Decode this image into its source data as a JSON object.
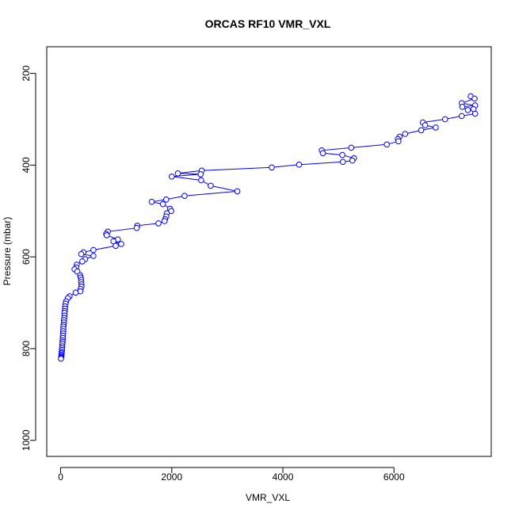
{
  "chart_data": {
    "type": "scatter",
    "title": "ORCAS RF10 VMR_VXL",
    "xlabel": "VMR_VXL",
    "ylabel": "Pressure (mbar)",
    "xlim": [
      -250,
      7750
    ],
    "ylim": [
      1035,
      142
    ],
    "y_reversed": true,
    "x_ticks": [
      0,
      2000,
      4000,
      6000
    ],
    "x_tick_labels": [
      "0",
      "2000",
      "4000",
      "6000"
    ],
    "y_ticks": [
      200,
      400,
      600,
      800,
      1000
    ],
    "y_tick_labels": [
      "200",
      "400",
      "600",
      "800",
      "1000"
    ],
    "grid": false,
    "legend": "none",
    "marker": "open-circle",
    "connect_points": true,
    "color": "#0000ff",
    "series": [
      {
        "points": [
          [
            7380,
            250
          ],
          [
            7450,
            255
          ],
          [
            7220,
            265
          ],
          [
            7460,
            270
          ],
          [
            7230,
            273
          ],
          [
            7330,
            280
          ],
          [
            7430,
            278
          ],
          [
            7460,
            288
          ],
          [
            7220,
            293
          ],
          [
            6920,
            300
          ],
          [
            6520,
            307
          ],
          [
            6560,
            313
          ],
          [
            6750,
            318
          ],
          [
            6490,
            324
          ],
          [
            6200,
            332
          ],
          [
            6100,
            338
          ],
          [
            6070,
            343
          ],
          [
            6080,
            348
          ],
          [
            5870,
            355
          ],
          [
            5230,
            362
          ],
          [
            4700,
            368
          ],
          [
            4720,
            374
          ],
          [
            5070,
            378
          ],
          [
            5280,
            385
          ],
          [
            5250,
            390
          ],
          [
            5080,
            393
          ],
          [
            4290,
            399
          ],
          [
            3800,
            405
          ],
          [
            2540,
            412
          ],
          [
            2110,
            418
          ],
          [
            2520,
            420
          ],
          [
            2000,
            425
          ],
          [
            2530,
            433
          ],
          [
            2700,
            445
          ],
          [
            3180,
            457
          ],
          [
            2230,
            467
          ],
          [
            1900,
            475
          ],
          [
            1640,
            480
          ],
          [
            1840,
            485
          ],
          [
            1970,
            495
          ],
          [
            1990,
            500
          ],
          [
            1910,
            505
          ],
          [
            1900,
            512
          ],
          [
            1880,
            518
          ],
          [
            1870,
            522
          ],
          [
            1760,
            527
          ],
          [
            1380,
            532
          ],
          [
            1370,
            537
          ],
          [
            850,
            545
          ],
          [
            820,
            550
          ],
          [
            830,
            553
          ],
          [
            1030,
            562
          ],
          [
            950,
            566
          ],
          [
            1090,
            572
          ],
          [
            990,
            576
          ],
          [
            590,
            585
          ],
          [
            410,
            590
          ],
          [
            370,
            594
          ],
          [
            590,
            598
          ],
          [
            440,
            605
          ],
          [
            390,
            610
          ],
          [
            290,
            617
          ],
          [
            280,
            623
          ],
          [
            250,
            627
          ],
          [
            300,
            632
          ],
          [
            350,
            640
          ],
          [
            360,
            645
          ],
          [
            370,
            650
          ],
          [
            370,
            655
          ],
          [
            375,
            660
          ],
          [
            375,
            665
          ],
          [
            360,
            670
          ],
          [
            355,
            675
          ],
          [
            270,
            678
          ],
          [
            160,
            686
          ],
          [
            130,
            690
          ],
          [
            100,
            697
          ],
          [
            90,
            702
          ],
          [
            80,
            708
          ],
          [
            80,
            713
          ],
          [
            75,
            718
          ],
          [
            70,
            722
          ],
          [
            70,
            728
          ],
          [
            65,
            733
          ],
          [
            60,
            738
          ],
          [
            60,
            743
          ],
          [
            55,
            748
          ],
          [
            50,
            752
          ],
          [
            50,
            757
          ],
          [
            45,
            762
          ],
          [
            45,
            767
          ],
          [
            40,
            772
          ],
          [
            40,
            777
          ],
          [
            35,
            782
          ],
          [
            35,
            786
          ],
          [
            30,
            790
          ],
          [
            30,
            795
          ],
          [
            25,
            799
          ],
          [
            25,
            803
          ],
          [
            20,
            807
          ],
          [
            20,
            810
          ],
          [
            15,
            813
          ],
          [
            15,
            816
          ],
          [
            10,
            818
          ],
          [
            10,
            820
          ],
          [
            5,
            822
          ]
        ]
      }
    ]
  }
}
